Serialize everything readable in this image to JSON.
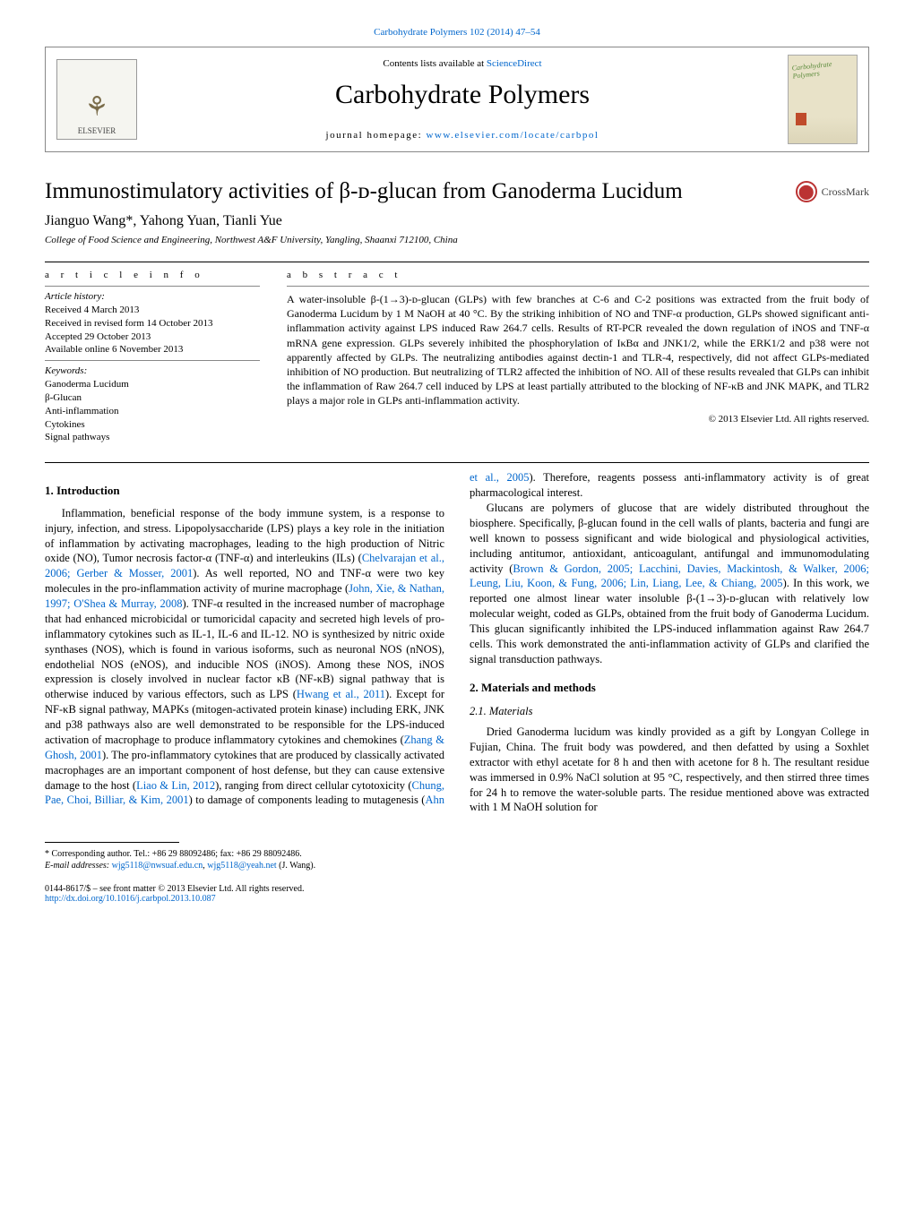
{
  "top_link": "Carbohydrate Polymers 102 (2014) 47–54",
  "header": {
    "elsevier_label": "ELSEVIER",
    "contents_prefix": "Contents lists available at ",
    "contents_link": "ScienceDirect",
    "journal_name": "Carbohydrate Polymers",
    "homepage_prefix": "journal homepage: ",
    "homepage_url": "www.elsevier.com/locate/carbpol",
    "cover_title": "Carbohydrate Polymers"
  },
  "title": "Immunostimulatory activities of β-ᴅ-glucan from Ganoderma Lucidum",
  "crossmark_label": "CrossMark",
  "authors": "Jianguo Wang*, Yahong Yuan, Tianli Yue",
  "affiliation": "College of Food Science and Engineering, Northwest A&F University, Yangling, Shaanxi 712100, China",
  "info_label": "a r t i c l e   i n f o",
  "abs_label": "a b s t r a c t",
  "history_label": "Article history:",
  "history": [
    "Received 4 March 2013",
    "Received in revised form 14 October 2013",
    "Accepted 29 October 2013",
    "Available online 6 November 2013"
  ],
  "keywords_label": "Keywords:",
  "keywords": [
    "Ganoderma Lucidum",
    "β-Glucan",
    "Anti-inflammation",
    "Cytokines",
    "Signal pathways"
  ],
  "abstract": "A water-insoluble β-(1→3)-ᴅ-glucan (GLPs) with few branches at C-6 and C-2 positions was extracted from the fruit body of Ganoderma Lucidum by 1 M NaOH at 40 °C. By the striking inhibition of NO and TNF-α production, GLPs showed significant anti-inflammation activity against LPS induced Raw 264.7 cells. Results of RT-PCR revealed the down regulation of iNOS and TNF-α mRNA gene expression. GLPs severely inhibited the phosphorylation of IκBα and JNK1/2, while the ERK1/2 and p38 were not apparently affected by GLPs. The neutralizing antibodies against dectin-1 and TLR-4, respectively, did not affect GLPs-mediated inhibition of NO production. But neutralizing of TLR2 affected the inhibition of NO. All of these results revealed that GLPs can inhibit the inflammation of Raw 264.7 cell induced by LPS at least partially attributed to the blocking of NF-κB and JNK MAPK, and TLR2 plays a major role in GLPs anti-inflammation activity.",
  "abs_copyright": "© 2013 Elsevier Ltd. All rights reserved.",
  "sections": {
    "intro_heading": "1. Introduction",
    "intro_p1a": "Inflammation, beneficial response of the body immune system, is a response to injury, infection, and stress. Lipopolysaccharide (LPS) plays a key role in the initiation of inflammation by activating macrophages, leading to the high production of Nitric oxide (NO), Tumor necrosis factor-α (TNF-α) and interleukins (ILs) (",
    "intro_ref1": "Chelvarajan et al., 2006; Gerber & Mosser, 2001",
    "intro_p1b": "). As well reported, NO and TNF-α were two key molecules in the pro-inflammation activity of murine macrophage (",
    "intro_ref2": "John, Xie, & Nathan, 1997; O'Shea & Murray, 2008",
    "intro_p1c": "). TNF-α resulted in the increased number of macrophage that had enhanced microbicidal or tumoricidal capacity and secreted high levels of pro-inflammatory cytokines such as IL-1, IL-6 and IL-12. NO is synthesized by nitric oxide synthases (NOS), which is found in various isoforms, such as neuronal NOS (nNOS), endothelial NOS (eNOS), and inducible NOS (iNOS). Among these NOS, iNOS expression is closely involved in nuclear factor κB (NF-κB) signal pathway that is otherwise induced by various effectors, such as LPS (",
    "intro_ref3": "Hwang et al., 2011",
    "intro_p1d": "). Except for NF-κB signal pathway, MAPKs (mitogen-activated protein kinase) including ERK, JNK and p38 pathways also are well demonstrated to be responsible for the LPS-induced activation of macrophage to produce inflammatory cytokines and chemokines (",
    "intro_ref4": "Zhang & Ghosh, 2001",
    "intro_p1e": "). The pro-inflammatory cytokines that are produced by classically activated macrophages are an important component of host defense, but they can cause extensive damage to the host (",
    "intro_ref5": "Liao & Lin, 2012",
    "intro_p1f": "),",
    "intro_p2a": "ranging from direct cellular cytotoxicity (",
    "intro_ref6": "Chung, Pae, Choi, Billiar, & Kim, 2001",
    "intro_p2b": ") to damage of components leading to mutagenesis (",
    "intro_ref7": "Ahn et al., 2005",
    "intro_p2c": "). Therefore, reagents possess anti-inflammatory activity is of great pharmacological interest.",
    "intro_p3a": "Glucans are polymers of glucose that are widely distributed throughout the biosphere. Specifically, β-glucan found in the cell walls of plants, bacteria and fungi are well known to possess significant and wide biological and physiological activities, including antitumor, antioxidant, anticoagulant, antifungal and immunomodulating activity (",
    "intro_ref8": "Brown & Gordon, 2005; Lacchini, Davies, Mackintosh, & Walker, 2006; Leung, Liu, Koon, & Fung, 2006; Lin, Liang, Lee, & Chiang, 2005",
    "intro_p3b": "). In this work, we reported one almost linear water insoluble β-(1→3)-ᴅ-glucan with relatively low molecular weight, coded as GLPs, obtained from the fruit body of Ganoderma Lucidum. This glucan significantly inhibited the LPS-induced inflammation against Raw 264.7 cells. This work demonstrated the anti-inflammation activity of GLPs and clarified the signal transduction pathways.",
    "mm_heading": "2. Materials and methods",
    "mat_heading": "2.1. Materials",
    "mat_p1": "Dried Ganoderma lucidum was kindly provided as a gift by Longyan College in Fujian, China. The fruit body was powdered, and then defatted by using a Soxhlet extractor with ethyl acetate for 8 h and then with acetone for 8 h. The resultant residue was immersed in 0.9% NaCl solution at 95 °C, respectively, and then stirred three times for 24 h to remove the water-soluble parts. The residue mentioned above was extracted with 1 M NaOH solution for"
  },
  "footnote": {
    "corresponding": "* Corresponding author. Tel.: +86 29 88092486; fax: +86 29 88092486.",
    "email_label": "E-mail addresses: ",
    "email1": "wjg5118@nwsuaf.edu.cn",
    "email_sep": ", ",
    "email2": "wjg5118@yeah.net",
    "email_tail": " (J. Wang)."
  },
  "bottom": {
    "issn": "0144-8617/$ – see front matter © 2013 Elsevier Ltd. All rights reserved.",
    "doi": "http://dx.doi.org/10.1016/j.carbpol.2013.10.087"
  },
  "colors": {
    "link": "#0066cc",
    "logo_bg": "#f5f5f0",
    "tree": "#7a6c4a",
    "cover_green": "#5a8a3a",
    "cover_red": "#bf4b2b",
    "crossmark_red": "#b33333"
  }
}
